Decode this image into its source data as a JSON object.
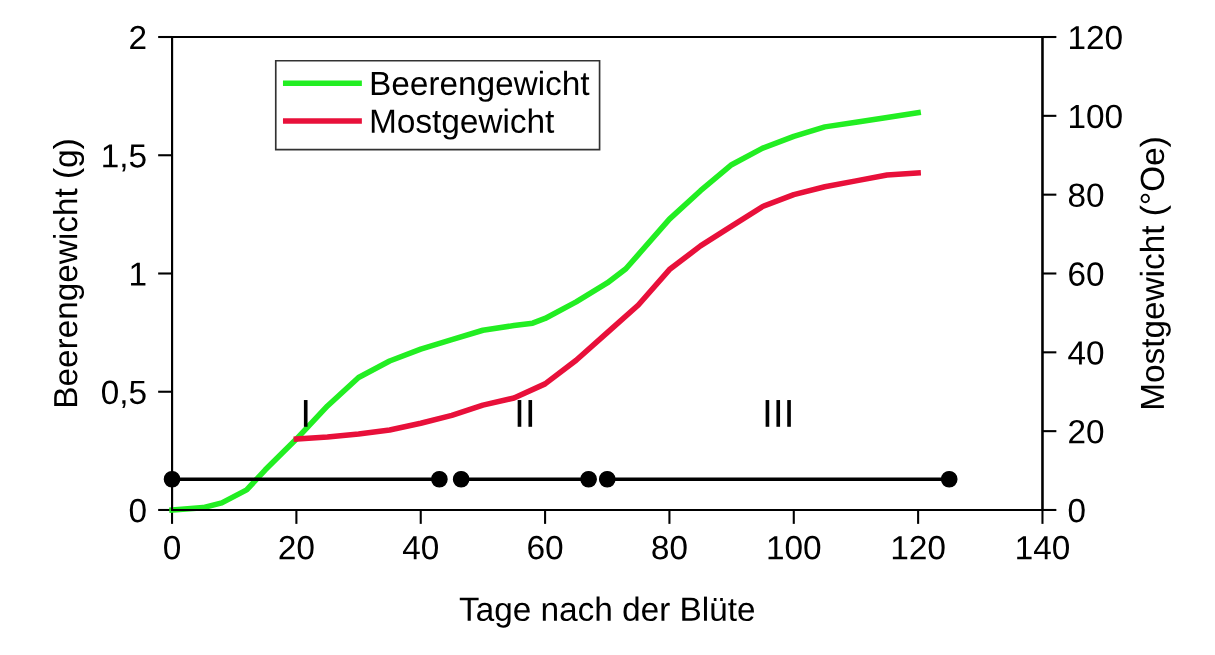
{
  "chart_data": {
    "type": "line",
    "xlabel": "Tage nach der Blüte",
    "ylabel": "Beerengewicht (g)",
    "y2label": "Mostgewicht (°Oe)",
    "xlim": [
      0,
      140
    ],
    "xticks": [
      0,
      20,
      40,
      60,
      80,
      100,
      120,
      140
    ],
    "ylim": [
      0,
      2
    ],
    "yticks": [
      0,
      {
        "value": 0.5,
        "label": "0,5"
      },
      1,
      {
        "value": 1.5,
        "label": "1,5"
      },
      2
    ],
    "y2lim": [
      0,
      120
    ],
    "y2ticks": [
      0,
      20,
      40,
      60,
      80,
      100,
      120
    ],
    "legend": "top left",
    "grid": false,
    "marker": "none",
    "line_style": "solid",
    "series": [
      {
        "name": "Beerengewicht",
        "color": "#22ee22",
        "x": [
          0,
          5,
          8,
          12,
          15,
          20,
          25,
          30,
          35,
          40,
          45,
          50,
          55,
          58,
          60,
          65,
          70,
          73,
          75,
          80,
          85,
          90,
          95,
          100,
          105,
          110,
          115,
          120
        ],
        "values": [
          0,
          0.01,
          0.03,
          0.085,
          0.17,
          0.3,
          0.44,
          0.56,
          0.63,
          0.68,
          0.72,
          0.76,
          0.78,
          0.79,
          0.81,
          0.88,
          0.96,
          1.02,
          1.08,
          1.23,
          1.35,
          1.46,
          1.53,
          1.58,
          1.62,
          1.64,
          1.66,
          1.68
        ]
      },
      {
        "name": "Mostgewicht",
        "color": "#e8103a",
        "axis": "y2",
        "x": [
          20,
          25,
          30,
          35,
          40,
          45,
          50,
          55,
          60,
          65,
          70,
          75,
          80,
          85,
          90,
          95,
          100,
          105,
          110,
          115,
          120
        ],
        "values": [
          18,
          18.5,
          19.3,
          20.3,
          22,
          24,
          26.6,
          28.4,
          32,
          38,
          45,
          52,
          61,
          67,
          72,
          77,
          80,
          82,
          83.5,
          85,
          85.5
        ]
      },
      {
        "color": "#000000",
        "marker": "circle",
        "x": [
          0,
          43
        ],
        "values": [
          0.13,
          0.13
        ]
      },
      {
        "color": "#000000",
        "marker": "circle",
        "x": [
          46.5,
          67
        ],
        "values": [
          0.13,
          0.13
        ]
      },
      {
        "color": "#000000",
        "marker": "circle",
        "x": [
          70,
          125
        ],
        "values": [
          0.13,
          0.13
        ]
      }
    ],
    "annotations": [
      "I",
      "II",
      "III"
    ]
  }
}
